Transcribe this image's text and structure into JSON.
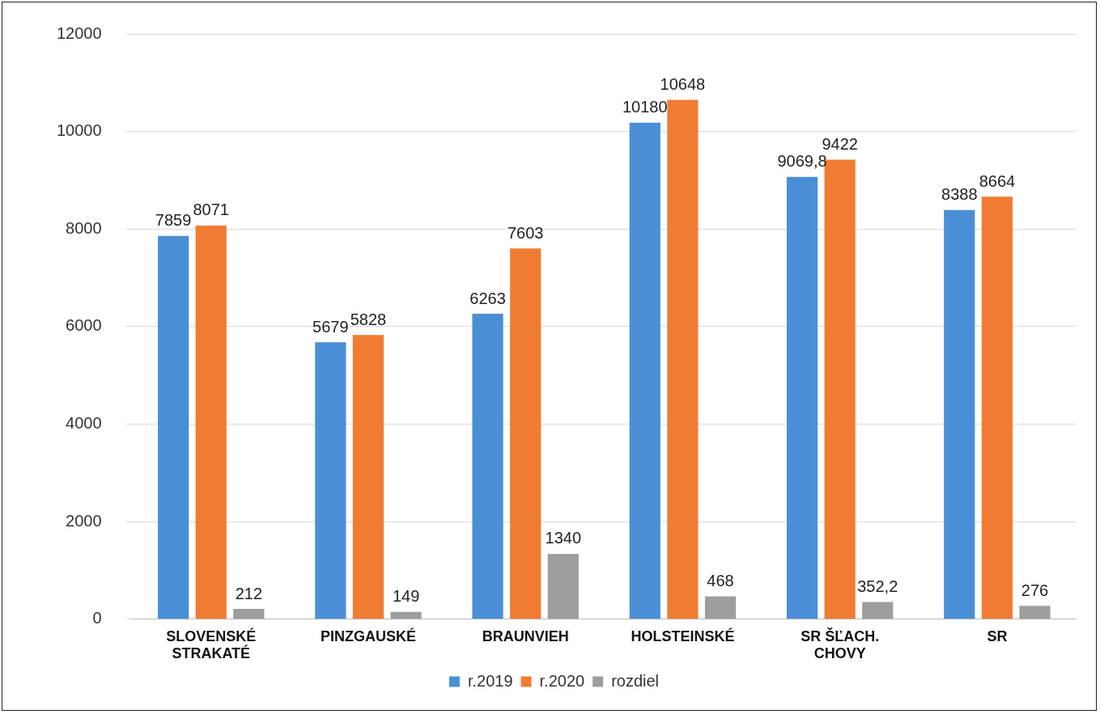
{
  "chart_data": {
    "type": "bar",
    "categories": [
      "SLOVENSKÉ STRAKATÉ",
      "PINZGAUSKÉ",
      "BRAUNVIEH",
      "HOLSTEINSKÉ",
      "SR ŠĽACH. CHOVY",
      "SR"
    ],
    "series": [
      {
        "name": "r.2019",
        "color": "#4a8fd6",
        "values": [
          7859,
          5679,
          6263,
          10180,
          9069.8,
          8388
        ],
        "value_labels": [
          "7859",
          "5679",
          "6263",
          "10180",
          "9069,8",
          "8388"
        ]
      },
      {
        "name": "r.2020",
        "color": "#f07c34",
        "values": [
          8071,
          5828,
          7603,
          10648,
          9422,
          8664
        ],
        "value_labels": [
          "8071",
          "5828",
          "7603",
          "10648",
          "9422",
          "8664"
        ]
      },
      {
        "name": "rozdiel",
        "color": "#9e9e9e",
        "values": [
          212,
          149,
          1340,
          468,
          352.2,
          276
        ],
        "value_labels": [
          "212",
          "149",
          "1340",
          "468",
          "352,2",
          "276"
        ]
      }
    ],
    "ylim": [
      0,
      12000
    ],
    "yticks": [
      0,
      2000,
      4000,
      6000,
      8000,
      10000,
      12000
    ],
    "grid": "y",
    "legend": "bottom"
  }
}
